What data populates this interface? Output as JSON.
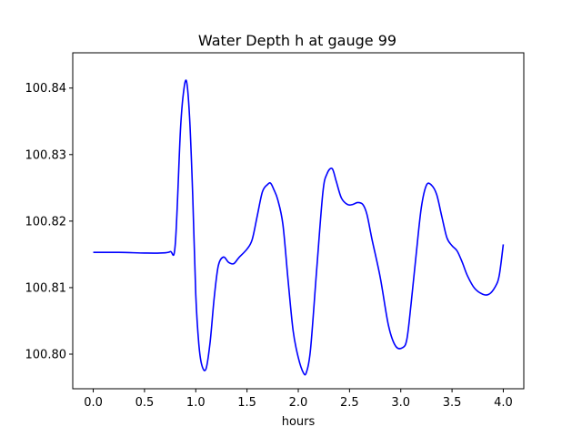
{
  "chart_data": {
    "type": "line",
    "title": "Water Depth h at gauge 99",
    "xlabel": "hours",
    "ylabel": "",
    "xlim": [
      -0.2,
      4.2
    ],
    "ylim": [
      100.7948,
      100.8453
    ],
    "xticks": [
      "0.0",
      "0.5",
      "1.0",
      "1.5",
      "2.0",
      "2.5",
      "3.0",
      "3.5",
      "4.0"
    ],
    "yticks": [
      "100.80",
      "100.81",
      "100.82",
      "100.83",
      "100.84"
    ],
    "grid": false,
    "series": [
      {
        "color": "#0000ff",
        "x": [
          0.0,
          0.25,
          0.5,
          0.65,
          0.75,
          0.8,
          0.85,
          0.88,
          0.91,
          0.94,
          0.97,
          1.0,
          1.03,
          1.06,
          1.1,
          1.14,
          1.18,
          1.22,
          1.27,
          1.32,
          1.37,
          1.42,
          1.5,
          1.55,
          1.6,
          1.65,
          1.7,
          1.73,
          1.76,
          1.8,
          1.85,
          1.9,
          1.95,
          2.0,
          2.05,
          2.08,
          2.12,
          2.18,
          2.24,
          2.28,
          2.33,
          2.37,
          2.42,
          2.48,
          2.53,
          2.58,
          2.63,
          2.67,
          2.72,
          2.8,
          2.88,
          2.95,
          3.02,
          3.06,
          3.1,
          3.15,
          3.2,
          3.25,
          3.3,
          3.35,
          3.4,
          3.45,
          3.5,
          3.55,
          3.6,
          3.65,
          3.72,
          3.8,
          3.86,
          3.92,
          3.96,
          4.0
        ],
        "y": [
          100.8153,
          100.8153,
          100.8152,
          100.8152,
          100.8154,
          100.8165,
          100.8335,
          100.8393,
          100.841,
          100.8355,
          100.824,
          100.809,
          100.8015,
          100.7983,
          100.7978,
          100.8018,
          100.8085,
          100.8133,
          100.8146,
          100.8138,
          100.8136,
          100.8145,
          100.8158,
          100.8172,
          100.8208,
          100.8244,
          100.8255,
          100.8257,
          100.8248,
          100.8232,
          100.8195,
          100.8112,
          100.8035,
          100.7995,
          100.7972,
          100.7973,
          100.8008,
          100.8128,
          100.8243,
          100.8271,
          100.8279,
          100.826,
          100.8235,
          100.8225,
          100.8225,
          100.8228,
          100.8225,
          100.821,
          100.8172,
          100.8115,
          100.8043,
          100.8012,
          100.801,
          100.8023,
          100.8075,
          100.815,
          100.822,
          100.8254,
          100.8254,
          100.824,
          100.8207,
          100.8175,
          100.8163,
          100.8155,
          100.8138,
          100.8118,
          100.8099,
          100.809,
          100.809,
          100.8101,
          100.8118,
          100.8165
        ]
      }
    ]
  }
}
